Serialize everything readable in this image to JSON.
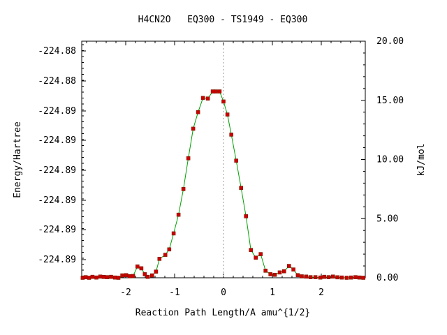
{
  "chart_data": {
    "type": "line",
    "title": "H4CN2O   EQ300 - TS1949 - EQ300",
    "xlabel": "Reaction Path Length/A amu^{1/2}",
    "ylabel": "Energy/Hartree",
    "y2label": "kJ/mol",
    "xlim": [
      -2.9,
      2.9
    ],
    "ylim_kj": [
      0.0,
      20.0
    ],
    "x_ticks": [
      -2,
      -1,
      0,
      1,
      2
    ],
    "y2_ticks": [
      "0.00",
      "5.00",
      "10.00",
      "15.00",
      "20.00"
    ],
    "y_tick_labels": [
      "-224.88",
      "-224.88",
      "-224.89",
      "-224.89",
      "-224.89",
      "-224.89",
      "-224.89",
      "-224.89"
    ],
    "grid": false,
    "ts_marker_x": 0,
    "colors": {
      "line": "#00a000",
      "marker": "#cc0000",
      "marker_edge": "#7a1a00",
      "vline": "#999999"
    },
    "series": [
      {
        "x": [
          -2.88,
          -2.82,
          -2.75,
          -2.68,
          -2.6,
          -2.52,
          -2.45,
          -2.38,
          -2.3,
          -2.22,
          -2.15,
          -2.07,
          -1.99,
          -1.92,
          -1.85,
          -1.76,
          -1.68,
          -1.61,
          -1.55,
          -1.46,
          -1.38,
          -1.31,
          -1.19,
          -1.11,
          -1.02,
          -0.92,
          -0.82,
          -0.72,
          -0.62,
          -0.52,
          -0.42,
          -0.32,
          -0.22,
          -0.16,
          -0.08,
          0.0,
          0.08,
          0.16,
          0.26,
          0.36,
          0.46,
          0.56,
          0.66,
          0.76,
          0.86,
          0.96,
          1.05,
          1.15,
          1.24,
          1.34,
          1.43,
          1.52,
          1.6,
          1.69,
          1.78,
          1.88,
          1.98,
          2.06,
          2.15,
          2.24,
          2.33,
          2.42,
          2.52,
          2.61,
          2.7,
          2.78,
          2.86
        ],
        "y": [
          0.0,
          0.05,
          0.0,
          0.08,
          0.02,
          0.1,
          0.07,
          0.05,
          0.08,
          0.02,
          0.0,
          0.2,
          0.22,
          0.13,
          0.15,
          0.95,
          0.8,
          0.3,
          0.08,
          0.2,
          0.52,
          1.6,
          1.94,
          2.4,
          3.75,
          5.33,
          7.5,
          10.1,
          12.6,
          14.0,
          15.2,
          15.15,
          15.75,
          15.75,
          15.75,
          14.9,
          13.8,
          12.1,
          9.9,
          7.6,
          5.2,
          2.35,
          1.7,
          2.0,
          0.6,
          0.3,
          0.25,
          0.45,
          0.55,
          1.0,
          0.7,
          0.22,
          0.12,
          0.1,
          0.05,
          0.05,
          0.02,
          0.08,
          0.05,
          0.1,
          0.04,
          0.02,
          0.0,
          0.02,
          0.05,
          0.02,
          0.0
        ]
      }
    ]
  }
}
